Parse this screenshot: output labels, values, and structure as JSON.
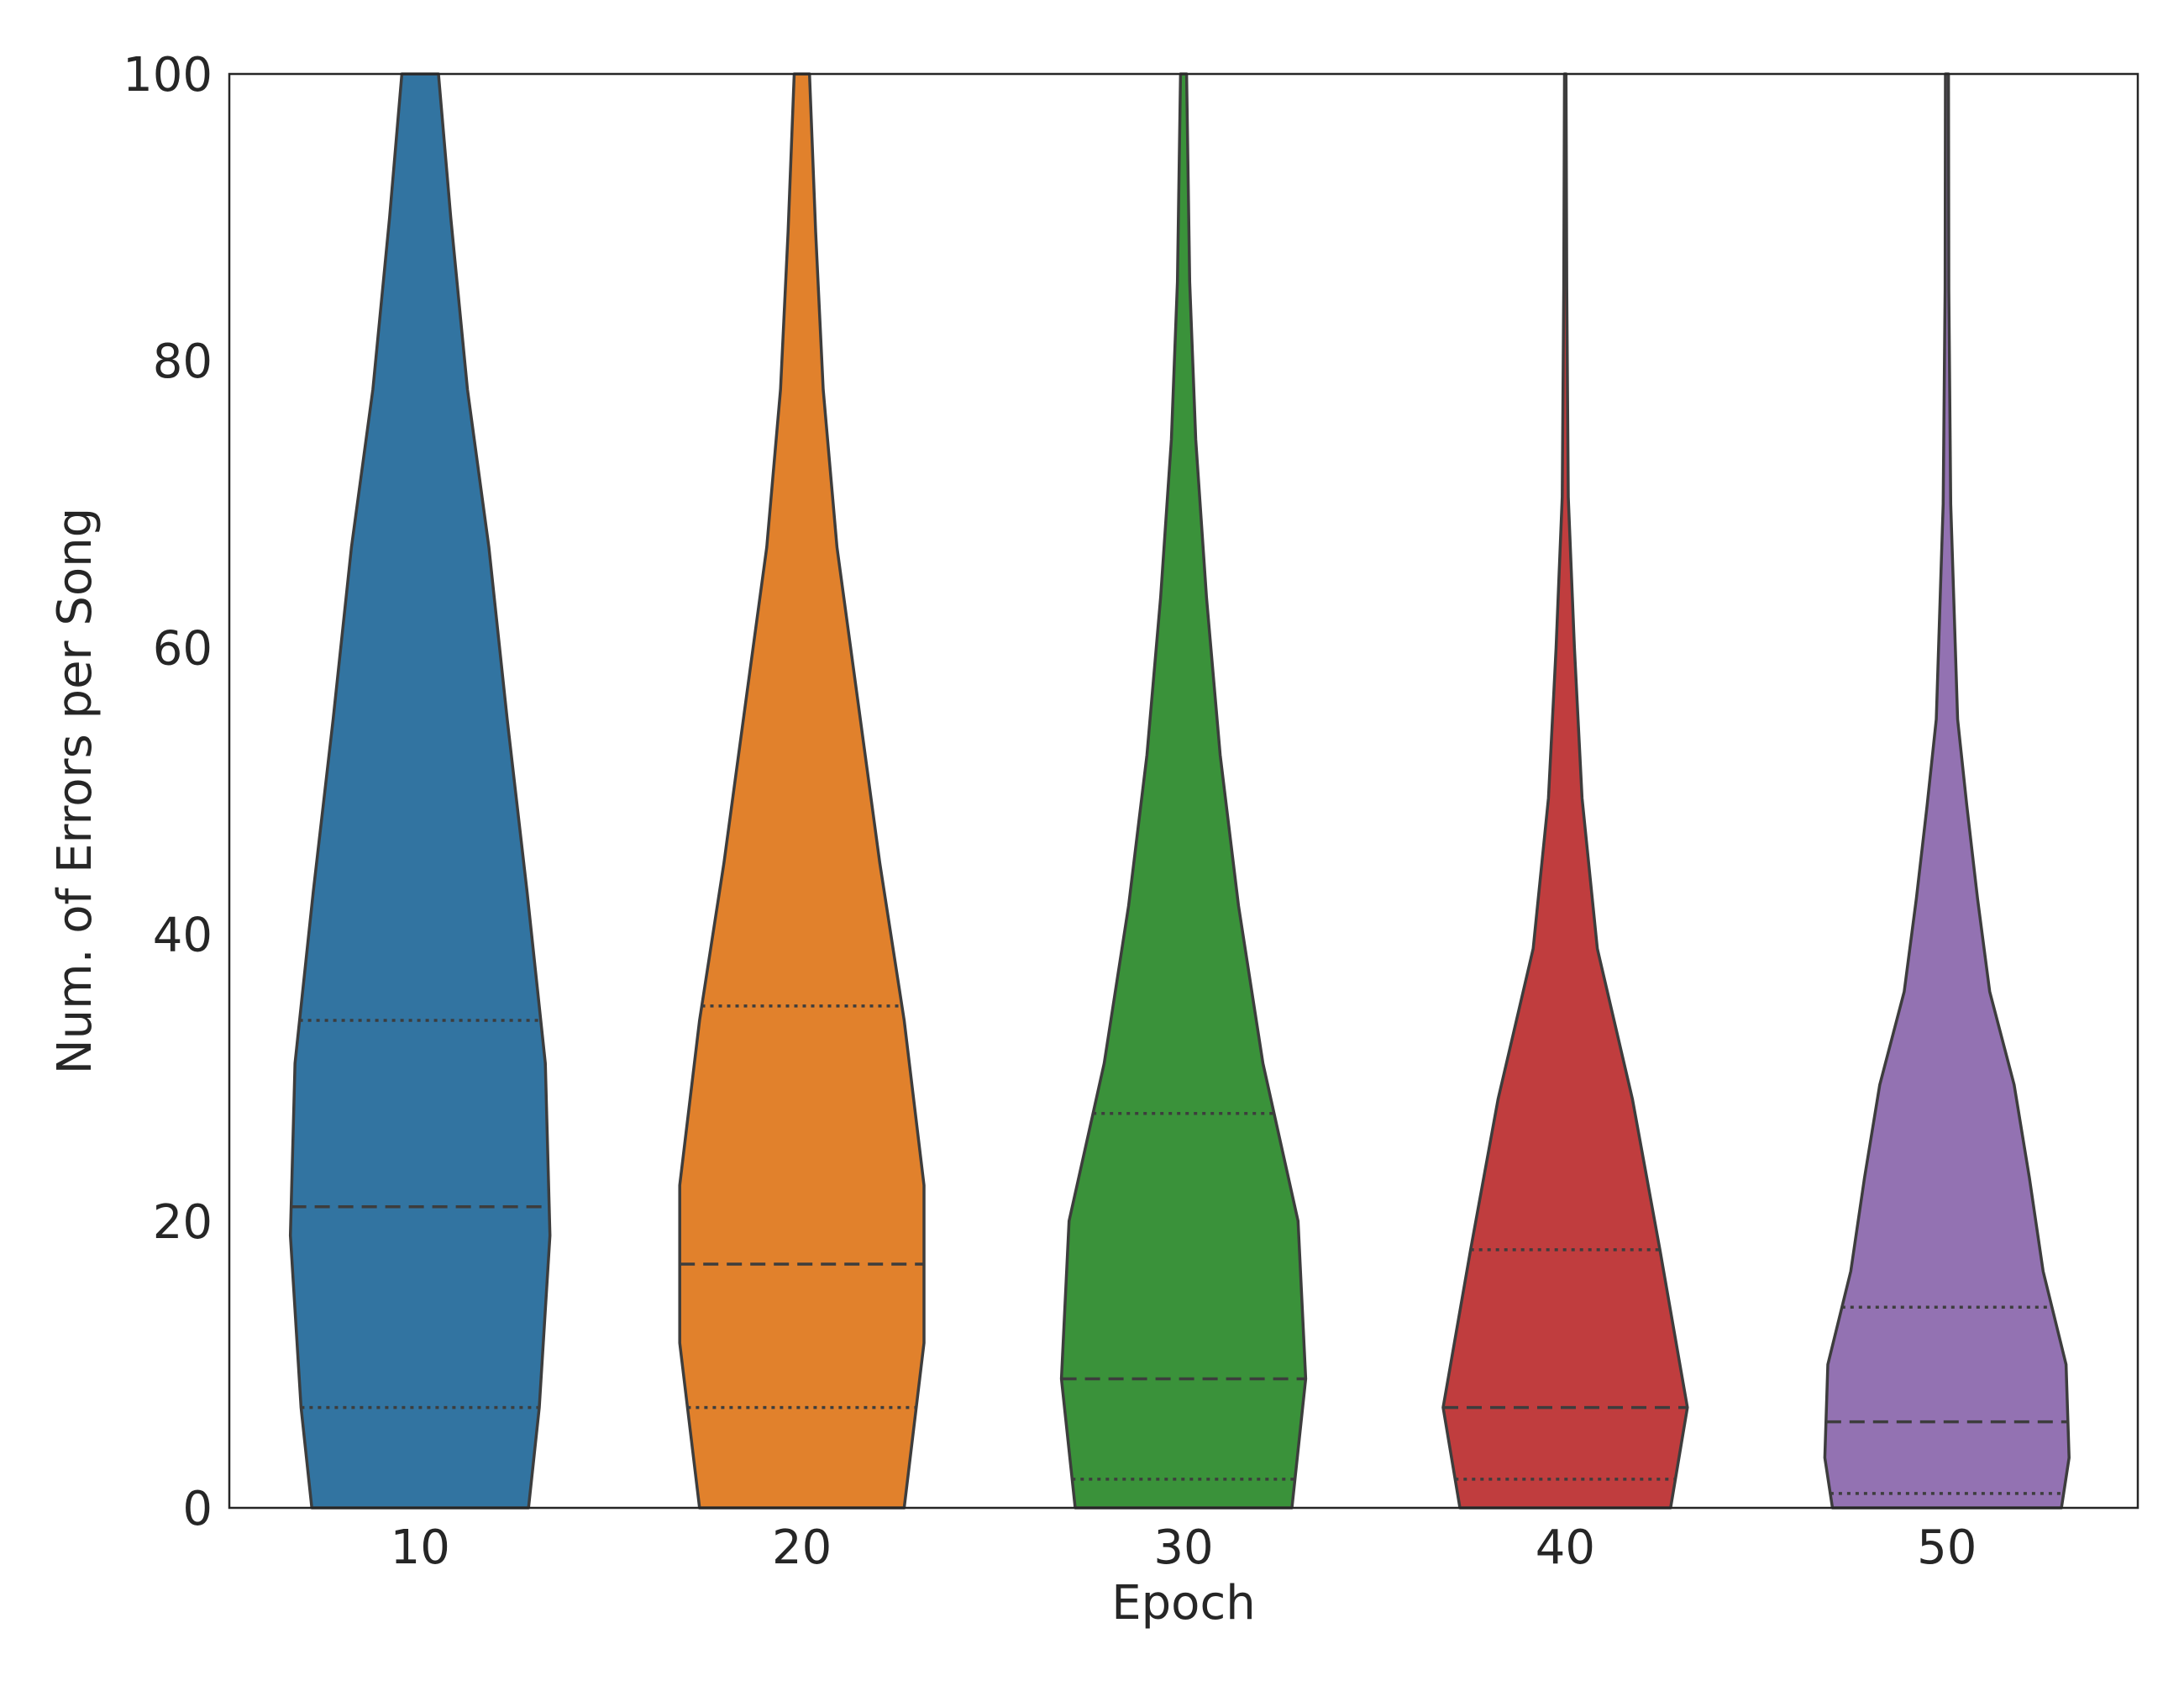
{
  "chart_data": {
    "type": "violin",
    "xlabel": "Epoch",
    "ylabel": "Num. of Errors per Song",
    "ylim": [
      0,
      100
    ],
    "yticks": [
      0,
      20,
      40,
      60,
      80,
      100
    ],
    "grid": false,
    "categories": [
      "10",
      "20",
      "30",
      "40",
      "50"
    ],
    "colors": [
      "#3274a1",
      "#e1812c",
      "#3a923a",
      "#c03d3e",
      "#9372b2"
    ],
    "series": [
      {
        "category": "10",
        "quartiles": {
          "q1": 7,
          "median": 21,
          "q3": 34
        },
        "density": [
          [
            0,
            0.71
          ],
          [
            7,
            0.78
          ],
          [
            19,
            0.85
          ],
          [
            31,
            0.82
          ],
          [
            43,
            0.7
          ],
          [
            55,
            0.57
          ],
          [
            67,
            0.45
          ],
          [
            78,
            0.31
          ],
          [
            90,
            0.2
          ],
          [
            100,
            0.12
          ]
        ]
      },
      {
        "category": "20",
        "quartiles": {
          "q1": 7,
          "median": 17,
          "q3": 35
        },
        "density": [
          [
            0,
            0.67
          ],
          [
            11.5,
            0.8
          ],
          [
            22.5,
            0.8
          ],
          [
            34,
            0.67
          ],
          [
            45,
            0.51
          ],
          [
            56,
            0.37
          ],
          [
            67,
            0.23
          ],
          [
            78,
            0.14
          ],
          [
            89,
            0.09
          ],
          [
            100,
            0.05
          ]
        ]
      },
      {
        "category": "30",
        "quartiles": {
          "q1": 2,
          "median": 9,
          "q3": 27.5
        },
        "density": [
          [
            0,
            0.71
          ],
          [
            9,
            0.8
          ],
          [
            20,
            0.75
          ],
          [
            31,
            0.52
          ],
          [
            42,
            0.36
          ],
          [
            52.5,
            0.24
          ],
          [
            63.5,
            0.15
          ],
          [
            74.5,
            0.08
          ],
          [
            85.5,
            0.04
          ],
          [
            100,
            0.02
          ]
        ]
      },
      {
        "category": "40",
        "quartiles": {
          "q1": 2,
          "median": 7,
          "q3": 18
        },
        "density": [
          [
            0,
            0.69
          ],
          [
            7,
            0.8
          ],
          [
            18,
            0.62
          ],
          [
            28.5,
            0.44
          ],
          [
            39,
            0.21
          ],
          [
            49.5,
            0.11
          ],
          [
            60,
            0.06
          ],
          [
            70.5,
            0.02
          ],
          [
            85,
            0.01
          ],
          [
            100,
            0.005
          ]
        ]
      },
      {
        "category": "50",
        "quartiles": {
          "q1": 1,
          "median": 6,
          "q3": 14
        },
        "density": [
          [
            0,
            0.75
          ],
          [
            3.5,
            0.8
          ],
          [
            10,
            0.78
          ],
          [
            16.5,
            0.63
          ],
          [
            23,
            0.54
          ],
          [
            29.5,
            0.44
          ],
          [
            36,
            0.28
          ],
          [
            42.5,
            0.2
          ],
          [
            49,
            0.13
          ],
          [
            55,
            0.07
          ],
          [
            70,
            0.025
          ],
          [
            85,
            0.012
          ],
          [
            100,
            0.01
          ]
        ]
      }
    ]
  }
}
